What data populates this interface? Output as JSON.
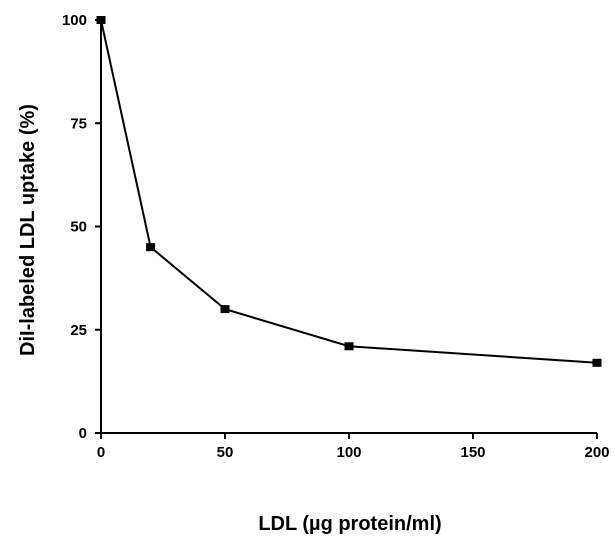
{
  "chart_data": {
    "type": "line",
    "title": "",
    "xlabel": "LDL (µg protein/ml)",
    "ylabel": "DiI-labeled LDL uptake (%)",
    "xlim": [
      0,
      200
    ],
    "ylim": [
      0,
      100
    ],
    "xticks": [
      0,
      50,
      100,
      150,
      200
    ],
    "yticks": [
      0,
      25,
      50,
      75,
      100
    ],
    "grid": false,
    "series": [
      {
        "x": [
          0,
          20,
          50,
          100,
          200
        ],
        "y": [
          100,
          45,
          30,
          21,
          17
        ],
        "marker": "square",
        "color": "#000000"
      }
    ]
  }
}
